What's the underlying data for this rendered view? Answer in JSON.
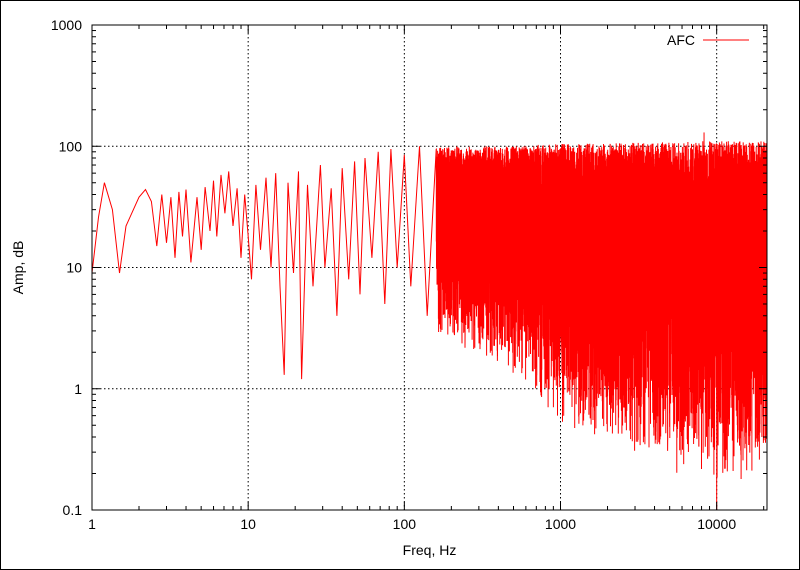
{
  "chart_data": {
    "type": "line",
    "xscale": "log",
    "yscale": "log",
    "xlabel": "Freq, Hz",
    "ylabel": "Amp, dB",
    "xlim": [
      1,
      21000
    ],
    "ylim": [
      0.1,
      1000
    ],
    "xticks": [
      {
        "value": 1,
        "label": "1"
      },
      {
        "value": 10,
        "label": "10"
      },
      {
        "value": 100,
        "label": "100"
      },
      {
        "value": 1000,
        "label": "1000"
      },
      {
        "value": 10000,
        "label": "10000"
      }
    ],
    "yticks": [
      {
        "value": 0.1,
        "label": "0.1"
      },
      {
        "value": 1,
        "label": "1"
      },
      {
        "value": 10,
        "label": "10"
      },
      {
        "value": 100,
        "label": "100"
      },
      {
        "value": 1000,
        "label": "1000"
      }
    ],
    "grid": true,
    "legend_position": "top-right",
    "series": [
      {
        "name": "AFC",
        "color": "#ff0000",
        "points": [
          [
            1,
            9
          ],
          [
            1.1,
            26
          ],
          [
            1.2,
            50
          ],
          [
            1.35,
            30
          ],
          [
            1.5,
            9
          ],
          [
            1.65,
            22
          ],
          [
            2.0,
            38
          ],
          [
            2.2,
            44
          ],
          [
            2.4,
            35
          ],
          [
            2.6,
            15
          ],
          [
            2.8,
            40
          ],
          [
            3.0,
            16
          ],
          [
            3.2,
            38
          ],
          [
            3.4,
            12
          ],
          [
            3.6,
            42
          ],
          [
            3.8,
            18
          ],
          [
            4.0,
            44
          ],
          [
            4.3,
            11
          ],
          [
            4.7,
            38
          ],
          [
            5.0,
            14
          ],
          [
            5.3,
            46
          ],
          [
            5.7,
            20
          ],
          [
            6.0,
            52
          ],
          [
            6.3,
            18
          ],
          [
            6.7,
            58
          ],
          [
            7.1,
            28
          ],
          [
            7.5,
            62
          ],
          [
            8.0,
            22
          ],
          [
            8.5,
            45
          ],
          [
            9.0,
            12
          ],
          [
            9.5,
            40
          ],
          [
            10,
            18
          ],
          [
            10.5,
            8
          ],
          [
            11.2,
            48
          ],
          [
            12,
            14
          ],
          [
            13,
            55
          ],
          [
            14,
            10
          ],
          [
            15,
            60
          ],
          [
            16,
            7
          ],
          [
            17,
            1.3
          ],
          [
            18,
            50
          ],
          [
            19.5,
            9
          ],
          [
            21,
            62
          ],
          [
            22,
            1.2
          ],
          [
            24,
            48
          ],
          [
            26,
            7
          ],
          [
            29,
            70
          ],
          [
            31,
            10
          ],
          [
            34,
            45
          ],
          [
            37,
            4
          ],
          [
            40,
            66
          ],
          [
            44,
            8
          ],
          [
            48,
            75
          ],
          [
            52,
            6
          ],
          [
            56,
            80
          ],
          [
            62,
            12
          ],
          [
            68,
            90
          ],
          [
            75,
            5
          ],
          [
            82,
            95
          ],
          [
            90,
            10
          ],
          [
            100,
            85
          ],
          [
            110,
            7
          ],
          [
            125,
            100
          ],
          [
            140,
            4
          ],
          [
            160,
            95
          ]
        ],
        "envelope": [
          {
            "f": 10,
            "upper": 60,
            "lower": 4
          },
          {
            "f": 30,
            "upper": 75,
            "lower": 2.5
          },
          {
            "f": 60,
            "upper": 85,
            "lower": 2.8
          },
          {
            "f": 100,
            "upper": 90,
            "lower": 2.6
          },
          {
            "f": 200,
            "upper": 100,
            "lower": 2.3
          },
          {
            "f": 500,
            "upper": 100,
            "lower": 1.3
          },
          {
            "f": 1000,
            "upper": 105,
            "lower": 0.45
          },
          {
            "f": 2000,
            "upper": 105,
            "lower": 0.35
          },
          {
            "f": 5000,
            "upper": 110,
            "lower": 0.2
          },
          {
            "f": 10000,
            "upper": 110,
            "lower": 0.15
          },
          {
            "f": 21000,
            "upper": 110,
            "lower": 0.2
          }
        ],
        "peak": {
          "f": 8300,
          "amp": 130
        },
        "minimum": {
          "f": 10000,
          "amp": 0.1
        }
      }
    ]
  }
}
